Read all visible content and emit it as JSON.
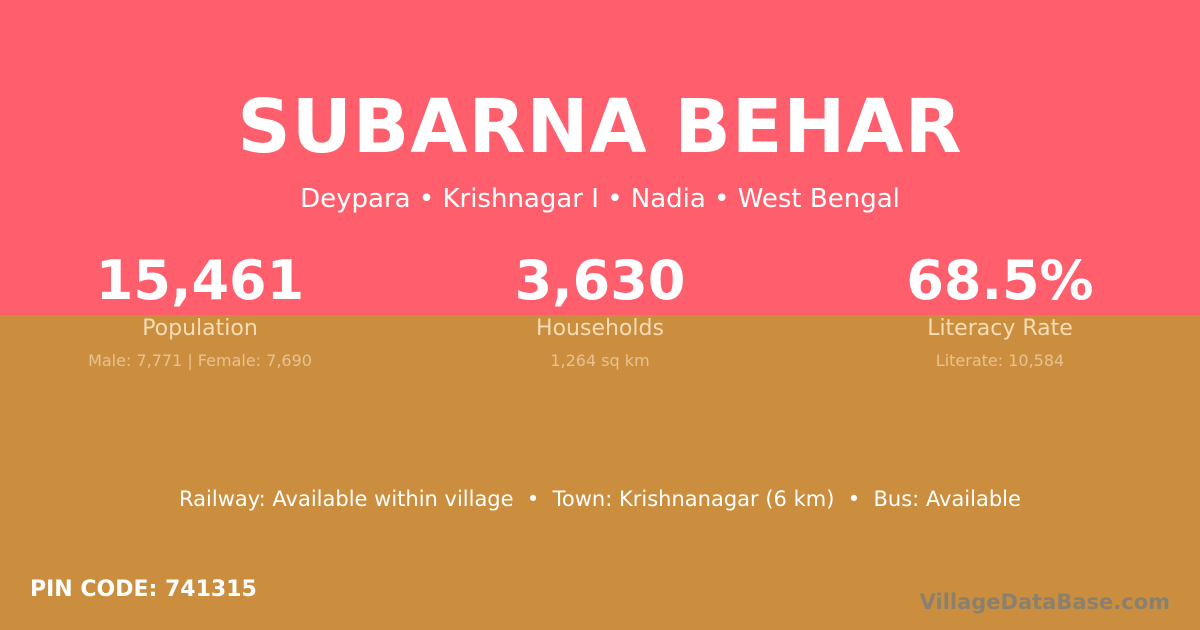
{
  "colors": {
    "top_bg": "#ff5f6d",
    "bottom_bg": "#cb8e3e"
  },
  "title": "SUBARNA BEHAR",
  "subtitle": "Deypara • Krishnagar I • Nadia • West Bengal",
  "stats": [
    {
      "value": "15,461",
      "label": "Population",
      "detail": "Male: 7,771 | Female: 7,690"
    },
    {
      "value": "3,630",
      "label": "Households",
      "detail": "1,264 sq km"
    },
    {
      "value": "68.5%",
      "label": "Literacy Rate",
      "detail": "Literate: 10,584"
    }
  ],
  "info": "Railway: Available within village  •  Town: Krishnanagar (6 km)  •  Bus: Available",
  "pin": "PIN CODE: 741315",
  "brand": "VillageDataBase.com"
}
